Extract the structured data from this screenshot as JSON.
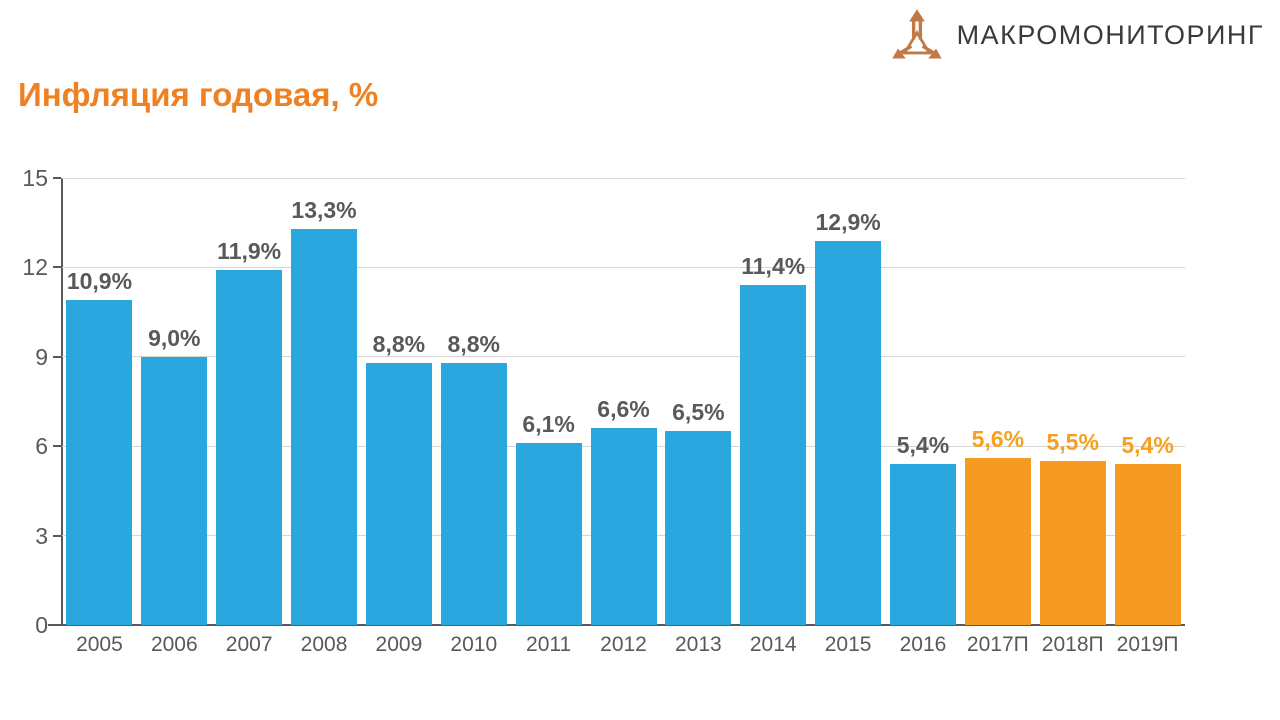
{
  "header": {
    "logo_text": "МАКРОМОНИТОРИНГ",
    "title": "Инфляция годовая, %"
  },
  "colors": {
    "title": "#ef8122",
    "actual_bar": "#2aa7de",
    "forecast_bar": "#f59b22",
    "actual_value_label": "#595959",
    "forecast_value_label": "#f7a01f",
    "axis": "#595959",
    "gridline": "#d6d6d6",
    "logo_icon": "#c17a44",
    "logo_text": "#3a3a3a"
  },
  "icons": {
    "logo_icon": "three-arrows-trident-icon"
  },
  "chart_data": {
    "type": "bar",
    "title": "Инфляция годовая, %",
    "categories": [
      "2005",
      "2006",
      "2007",
      "2008",
      "2009",
      "2010",
      "2011",
      "2012",
      "2013",
      "2014",
      "2015",
      "2016",
      "2017П",
      "2018П",
      "2019П"
    ],
    "values": [
      10.9,
      9.0,
      11.9,
      13.3,
      8.8,
      8.8,
      6.1,
      6.6,
      6.5,
      11.4,
      12.9,
      5.4,
      5.6,
      5.5,
      5.4
    ],
    "value_labels": [
      "10,9%",
      "9,0%",
      "11,9%",
      "13,3%",
      "8,8%",
      "8,8%",
      "6,1%",
      "6,6%",
      "6,5%",
      "11,4%",
      "12,9%",
      "5,4%",
      "5,6%",
      "5,5%",
      "5,4%"
    ],
    "forecast_flags": [
      false,
      false,
      false,
      false,
      false,
      false,
      false,
      false,
      false,
      false,
      false,
      false,
      true,
      true,
      true
    ],
    "xlabel": "",
    "ylabel": "",
    "ylim": [
      0,
      15
    ],
    "yticks": [
      0,
      3,
      6,
      9,
      12,
      15
    ],
    "grid": true,
    "legend": "none"
  }
}
